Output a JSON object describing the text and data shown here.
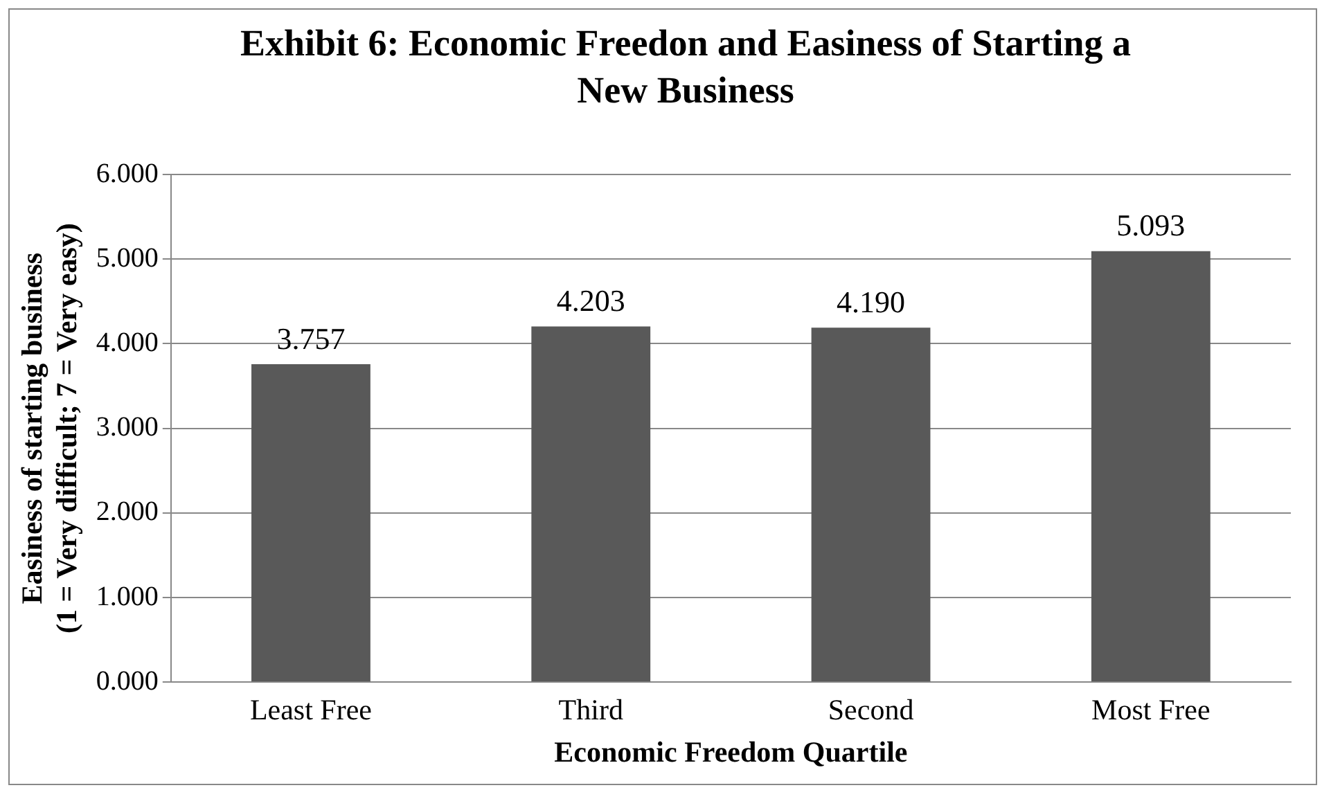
{
  "chart_data": {
    "type": "bar",
    "title": "Exhibit 6: Economic Freedon and Easiness of Starting a New Business",
    "xlabel": "Economic Freedom Quartile",
    "ylabel": "Easiness of starting business\n(1 = Very difficult; 7 = Very easy)",
    "categories": [
      "Least Free",
      "Third",
      "Second",
      "Most Free"
    ],
    "values": [
      3.757,
      4.203,
      4.19,
      5.093
    ],
    "color": "#595959",
    "ylim": [
      0,
      6
    ],
    "yticks": [
      {
        "value": 0,
        "label": "0.000"
      },
      {
        "value": 1,
        "label": "1.000"
      },
      {
        "value": 2,
        "label": "2.000"
      },
      {
        "value": 3,
        "label": "3.000"
      },
      {
        "value": 4,
        "label": "4.000"
      },
      {
        "value": 5,
        "label": "5.000"
      },
      {
        "value": 6,
        "label": "6.000"
      }
    ],
    "value_labels": [
      "3.757",
      "4.203",
      "4.190",
      "5.093"
    ],
    "grid": "y",
    "legend": false
  }
}
